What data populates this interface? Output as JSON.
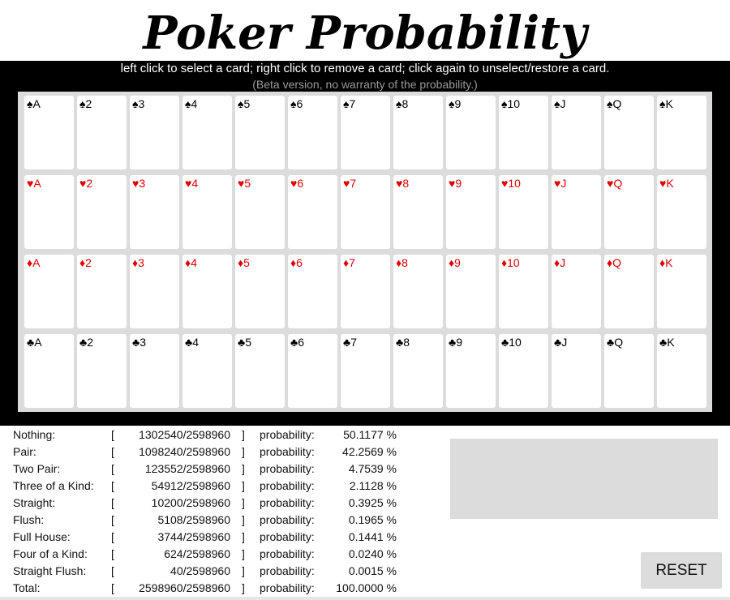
{
  "title": "Poker Probability",
  "instructions": "left click to select a card; right click to remove a card; click again to unselect/restore a card.",
  "beta_note": "(Beta version, no warranty of the probability.)",
  "ranks": [
    "A",
    "2",
    "3",
    "4",
    "5",
    "6",
    "7",
    "8",
    "9",
    "10",
    "J",
    "Q",
    "K"
  ],
  "suits": [
    {
      "name": "spades",
      "symbol": "♠",
      "color": "#000000"
    },
    {
      "name": "hearts",
      "symbol": "♥",
      "color": "#e00000"
    },
    {
      "name": "diamonds",
      "symbol": "♦",
      "color": "#e00000"
    },
    {
      "name": "clubs",
      "symbol": "♣",
      "color": "#000000"
    }
  ],
  "stats": {
    "prob_label": "probability:",
    "open_bracket": "[",
    "close_bracket": "]",
    "rows": [
      {
        "name": "Nothing:",
        "count": "1302540/2598960",
        "percent": "50.1177 %"
      },
      {
        "name": "Pair:",
        "count": "1098240/2598960",
        "percent": "42.2569 %"
      },
      {
        "name": "Two Pair:",
        "count": "123552/2598960",
        "percent": "4.7539 %"
      },
      {
        "name": "Three of a Kind:",
        "count": "54912/2598960",
        "percent": "2.1128 %"
      },
      {
        "name": "Straight:",
        "count": "10200/2598960",
        "percent": "0.3925 %"
      },
      {
        "name": "Flush:",
        "count": "5108/2598960",
        "percent": "0.1965 %"
      },
      {
        "name": "Full House:",
        "count": "3744/2598960",
        "percent": "0.1441 %"
      },
      {
        "name": "Four of a Kind:",
        "count": "624/2598960",
        "percent": "0.0240 %"
      },
      {
        "name": "Straight Flush:",
        "count": "40/2598960",
        "percent": "0.0015 %"
      },
      {
        "name": "Total:",
        "count": "2598960/2598960",
        "percent": "100.0000 %"
      }
    ]
  },
  "reset_label": "RESET"
}
